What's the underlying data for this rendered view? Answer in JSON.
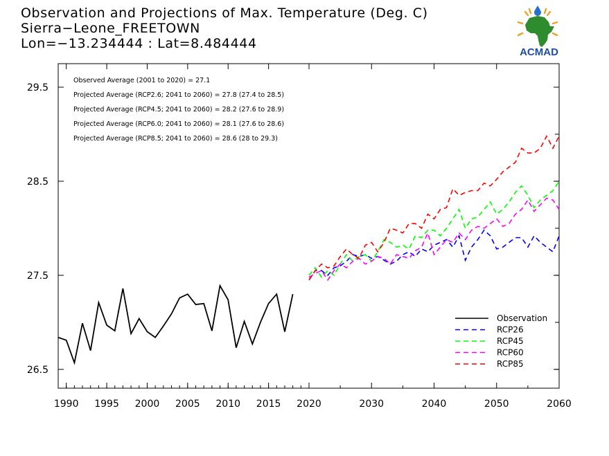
{
  "title": {
    "line1": "Observation and Projections of Max. Temperature (Deg. C)",
    "line2": "Sierra−Leone_FREETOWN",
    "line3": "Lon=−13.234444 : Lat=8.484444"
  },
  "logo": {
    "text": "ACMAD",
    "colors": {
      "africa": "#2e8b2e",
      "text": "#1f4e9c",
      "drop": "#2a6fc9",
      "rays": "#f0a020"
    }
  },
  "chart_data": {
    "type": "line",
    "title": "Observation and Projections of Max. Temperature (Deg. C)",
    "xlabel": "",
    "ylabel": "",
    "ylim": [
      26.3,
      29.75
    ],
    "grid": false,
    "legend_position": "bottom-right",
    "x_segments": [
      {
        "from": 1989,
        "to": 2020,
        "ticks": [
          1990,
          1995,
          2000,
          2005,
          2010,
          2015,
          2020
        ]
      },
      {
        "from": 2020,
        "to": 2060,
        "ticks": [
          2030,
          2040,
          2050,
          2060
        ]
      }
    ],
    "yticks": [
      26.5,
      27.5,
      28.5,
      29.5
    ],
    "yticks_labels": [
      "26.5",
      "27.5",
      "28.5",
      "29.5"
    ],
    "xticks_labels": [
      "1990",
      "1995",
      "2000",
      "2005",
      "2010",
      "2015",
      "2020",
      "2030",
      "2040",
      "2050",
      "2060"
    ],
    "annotations": [
      "Observed Average (2001 to 2020) = 27.1",
      "Projected Average (RCP2.6; 2041 to 2060) = 27.8 (27.4 to 28.5)",
      "Projected Average (RCP4.5; 2041 to 2060) = 28.2 (27.6 to 28.9)",
      "Projected Average (RCP6.0; 2041 to 2060) = 28.1 (27.6 to 28.6)",
      "Projected Average (RCP8.5; 2041 to 2060) = 28.6 (28 to 29.3)"
    ],
    "series": [
      {
        "name": "Observation",
        "color": "#000000",
        "dash": false,
        "x": [
          1989,
          1990,
          1991,
          1992,
          1993,
          1994,
          1995,
          1996,
          1997,
          1998,
          1999,
          2000,
          2001,
          2002,
          2003,
          2004,
          2005,
          2006,
          2007,
          2008,
          2009,
          2010,
          2011,
          2012,
          2013,
          2014,
          2015,
          2016,
          2017,
          2018,
          2019,
          2020
        ],
        "y": [
          26.84,
          26.81,
          26.57,
          26.99,
          26.7,
          27.21,
          26.97,
          26.91,
          27.36,
          26.88,
          27.04,
          26.9,
          26.84,
          26.96,
          27.09,
          27.26,
          27.3,
          27.19,
          27.2,
          26.91,
          27.39,
          27.24,
          26.73,
          27.01,
          26.77,
          27.0,
          27.2,
          27.3,
          26.9,
          27.3,
          null,
          null
        ]
      },
      {
        "name": "RCP26",
        "color": "#0000ff",
        "dash": true,
        "x": [
          2020,
          2021,
          2022,
          2023,
          2024,
          2025,
          2026,
          2027,
          2028,
          2029,
          2030,
          2031,
          2032,
          2033,
          2034,
          2035,
          2036,
          2037,
          2038,
          2039,
          2040,
          2041,
          2042,
          2043,
          2044,
          2045,
          2046,
          2047,
          2048,
          2049,
          2050,
          2051,
          2052,
          2053,
          2054,
          2055,
          2056,
          2057,
          2058,
          2059,
          2060
        ],
        "y": [
          27.45,
          27.55,
          27.55,
          27.5,
          27.58,
          27.6,
          27.65,
          27.72,
          27.7,
          27.72,
          27.68,
          27.7,
          27.66,
          27.62,
          27.65,
          27.72,
          27.75,
          27.7,
          27.78,
          27.75,
          27.82,
          27.85,
          27.88,
          27.8,
          27.92,
          27.66,
          27.8,
          27.88,
          27.98,
          27.92,
          27.78,
          27.8,
          27.85,
          27.9,
          27.9,
          27.8,
          27.92,
          27.85,
          27.8,
          27.75,
          27.92
        ]
      },
      {
        "name": "RCP45",
        "color": "#00ff00",
        "dash": true,
        "x": [
          2020,
          2021,
          2022,
          2023,
          2024,
          2025,
          2026,
          2027,
          2028,
          2029,
          2030,
          2031,
          2032,
          2033,
          2034,
          2035,
          2036,
          2037,
          2038,
          2039,
          2040,
          2041,
          2042,
          2043,
          2044,
          2045,
          2046,
          2047,
          2048,
          2049,
          2050,
          2051,
          2052,
          2053,
          2054,
          2055,
          2056,
          2057,
          2058,
          2059,
          2060
        ],
        "y": [
          27.5,
          27.58,
          27.48,
          27.55,
          27.5,
          27.62,
          27.72,
          27.65,
          27.7,
          27.72,
          27.65,
          27.75,
          27.88,
          27.85,
          27.8,
          27.82,
          27.78,
          27.92,
          27.9,
          27.98,
          27.98,
          27.92,
          28.0,
          28.1,
          28.2,
          28.0,
          28.1,
          28.12,
          28.2,
          28.28,
          28.15,
          28.2,
          28.28,
          28.38,
          28.45,
          28.35,
          28.22,
          28.3,
          28.35,
          28.4,
          28.5
        ]
      },
      {
        "name": "RCP60",
        "color": "#ff00ff",
        "dash": true,
        "x": [
          2020,
          2021,
          2022,
          2023,
          2024,
          2025,
          2026,
          2027,
          2028,
          2029,
          2030,
          2031,
          2032,
          2033,
          2034,
          2035,
          2036,
          2037,
          2038,
          2039,
          2040,
          2041,
          2042,
          2043,
          2044,
          2045,
          2046,
          2047,
          2048,
          2049,
          2050,
          2051,
          2052,
          2053,
          2054,
          2055,
          2056,
          2057,
          2058,
          2059,
          2060
        ],
        "y": [
          27.48,
          27.52,
          27.55,
          27.45,
          27.55,
          27.62,
          27.58,
          27.65,
          27.68,
          27.62,
          27.65,
          27.7,
          27.68,
          27.62,
          27.72,
          27.7,
          27.68,
          27.76,
          27.8,
          27.95,
          27.72,
          27.8,
          27.88,
          27.85,
          27.95,
          27.88,
          27.98,
          28.02,
          28.0,
          28.05,
          28.1,
          28.02,
          28.05,
          28.15,
          28.2,
          28.3,
          28.18,
          28.25,
          28.32,
          28.3,
          28.2
        ]
      },
      {
        "name": "RCP85",
        "color": "#ff0000",
        "dash": true,
        "x": [
          2020,
          2021,
          2022,
          2023,
          2024,
          2025,
          2026,
          2027,
          2028,
          2029,
          2030,
          2031,
          2032,
          2033,
          2034,
          2035,
          2036,
          2037,
          2038,
          2039,
          2040,
          2041,
          2042,
          2043,
          2044,
          2045,
          2046,
          2047,
          2048,
          2049,
          2050,
          2051,
          2052,
          2053,
          2054,
          2055,
          2056,
          2057,
          2058,
          2059,
          2060
        ],
        "y": [
          27.45,
          27.55,
          27.62,
          27.58,
          27.6,
          27.7,
          27.78,
          27.72,
          27.68,
          27.82,
          27.85,
          27.75,
          27.85,
          28.0,
          27.98,
          27.95,
          28.05,
          28.05,
          28.0,
          28.15,
          28.1,
          28.2,
          28.22,
          28.42,
          28.35,
          28.38,
          28.4,
          28.4,
          28.48,
          28.45,
          28.52,
          28.6,
          28.65,
          28.7,
          28.85,
          28.8,
          28.8,
          28.85,
          28.98,
          28.85,
          28.98
        ]
      }
    ]
  }
}
